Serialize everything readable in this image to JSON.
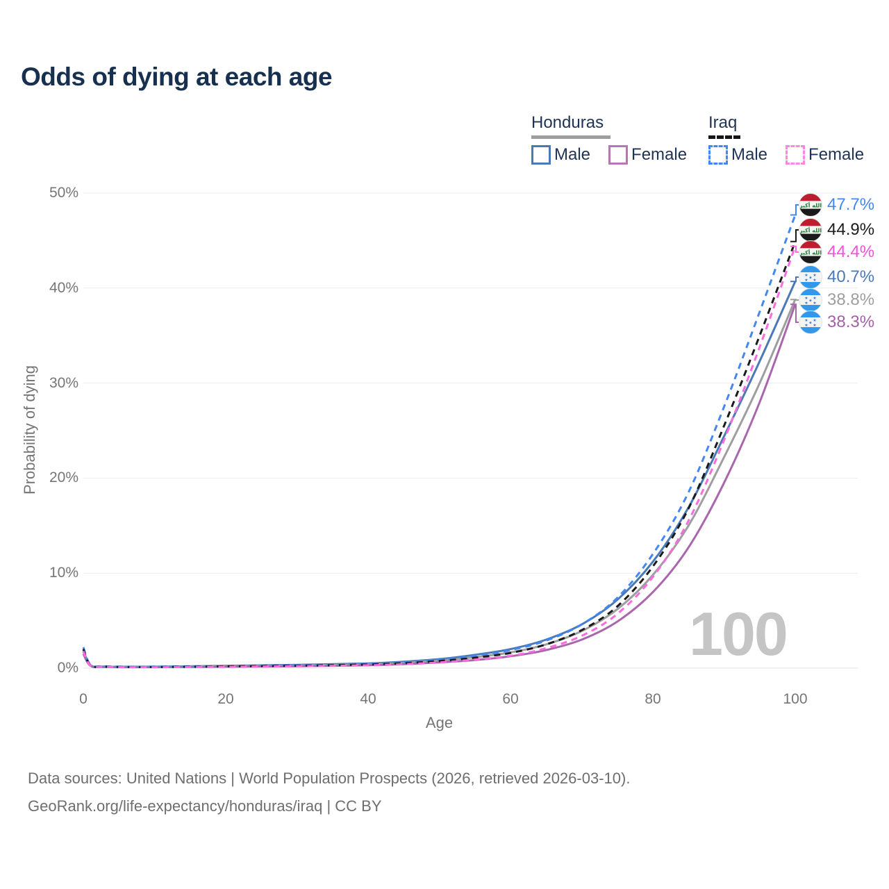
{
  "title": "Odds of dying at each age",
  "legend": {
    "honduras": {
      "title": "Honduras",
      "male": "Male",
      "female": "Female"
    },
    "iraq": {
      "title": "Iraq",
      "male": "Male",
      "female": "Female"
    }
  },
  "watermark": "100",
  "footer": {
    "line1": "Data sources: United Nations | World Population Prospects (2026, retrieved 2026-03-10).",
    "line2": "GeoRank.org/life-expectancy/honduras/iraq | CC BY"
  },
  "chart_data": {
    "type": "line",
    "title": "Odds of dying at each age",
    "xlabel": "Age",
    "ylabel": "Probability of dying",
    "xlim": [
      0,
      100
    ],
    "ylim": [
      0,
      50
    ],
    "x_ticks": [
      0,
      20,
      40,
      60,
      80,
      100
    ],
    "y_ticks": [
      "0%",
      "10%",
      "20%",
      "30%",
      "40%",
      "50%"
    ],
    "grid": "horizontal",
    "legend_position": "top-right",
    "ages": [
      0,
      1,
      3,
      10,
      20,
      30,
      40,
      45,
      50,
      55,
      60,
      65,
      70,
      75,
      80,
      85,
      90,
      95,
      100
    ],
    "series": [
      {
        "id": "iraq_male",
        "name": "Iraq Male",
        "color": "#4387f5",
        "dash": true,
        "end_label": "47.7%",
        "values": [
          2.2,
          0.35,
          0.18,
          0.15,
          0.22,
          0.3,
          0.45,
          0.62,
          0.9,
          1.3,
          1.9,
          2.9,
          4.6,
          7.4,
          12.0,
          18.5,
          27.5,
          37.5,
          47.7
        ]
      },
      {
        "id": "iraq_all",
        "name": "Iraq",
        "color": "#1a1a1a",
        "dash": true,
        "end_label": "44.9%",
        "values": [
          2.0,
          0.3,
          0.15,
          0.12,
          0.18,
          0.25,
          0.38,
          0.52,
          0.75,
          1.1,
          1.6,
          2.5,
          4.0,
          6.5,
          10.7,
          16.8,
          25.5,
          35.0,
          44.9
        ]
      },
      {
        "id": "iraq_female",
        "name": "Iraq Female",
        "color": "#fb6ade",
        "dash": true,
        "end_label": "44.4%",
        "values": [
          1.8,
          0.28,
          0.13,
          0.1,
          0.14,
          0.2,
          0.3,
          0.42,
          0.6,
          0.9,
          1.3,
          2.1,
          3.4,
          5.7,
          9.6,
          15.5,
          24.0,
          33.8,
          44.4
        ]
      },
      {
        "id": "honduras_male",
        "name": "Honduras Male",
        "color": "#4a79b6",
        "dash": false,
        "end_label": "40.7%",
        "values": [
          1.9,
          0.32,
          0.17,
          0.15,
          0.25,
          0.35,
          0.5,
          0.68,
          0.95,
          1.4,
          2.0,
          3.0,
          4.6,
          7.2,
          11.2,
          16.9,
          24.4,
          32.3,
          40.7
        ]
      },
      {
        "id": "honduras_all",
        "name": "Honduras",
        "color": "#9e9e9e",
        "dash": false,
        "end_label": "38.8%",
        "values": [
          1.7,
          0.28,
          0.14,
          0.12,
          0.2,
          0.28,
          0.4,
          0.55,
          0.8,
          1.15,
          1.65,
          2.5,
          3.9,
          6.2,
          9.8,
          15.0,
          22.2,
          30.0,
          38.8
        ]
      },
      {
        "id": "honduras_female",
        "name": "Honduras Female",
        "color": "#aa66ac",
        "dash": false,
        "end_label": "38.3%",
        "values": [
          1.5,
          0.25,
          0.12,
          0.1,
          0.15,
          0.2,
          0.3,
          0.42,
          0.6,
          0.85,
          1.25,
          1.9,
          3.0,
          4.9,
          8.0,
          12.7,
          19.5,
          28.0,
          38.3
        ]
      }
    ],
    "end_labels": [
      {
        "flag": "iraq",
        "value": "47.7%",
        "color": "#4387f5",
        "series": "iraq_male"
      },
      {
        "flag": "iraq",
        "value": "44.9%",
        "color": "#1c1c1c",
        "series": "iraq_all"
      },
      {
        "flag": "iraq",
        "value": "44.4%",
        "color": "#f94fd9",
        "series": "iraq_female"
      },
      {
        "flag": "honduras",
        "value": "40.7%",
        "color": "#4a79b6",
        "series": "honduras_male"
      },
      {
        "flag": "honduras",
        "value": "38.8%",
        "color": "#9e9e9e",
        "series": "honduras_all"
      },
      {
        "flag": "honduras",
        "value": "38.3%",
        "color": "#a55fa8",
        "series": "honduras_female"
      }
    ],
    "flags": {
      "iraq": {
        "bands": [
          "#bb1e2e",
          "#f4f4f4",
          "#1a1a1a"
        ],
        "script": "الله أكبر",
        "script_color": "#1e7a34"
      },
      "honduras": {
        "band": "#3398ea",
        "star_color": "#3a7bc8",
        "star": "★"
      }
    }
  }
}
